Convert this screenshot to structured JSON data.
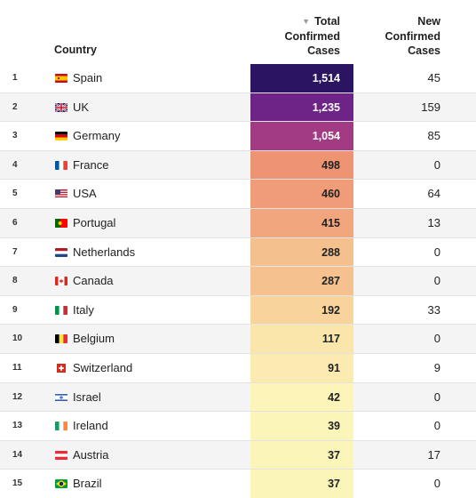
{
  "header": {
    "country_label": "Country",
    "total_line1": "Total",
    "total_line2": "Confirmed",
    "total_line3": "Cases",
    "sort_icon": "triangle-down-icon",
    "new_line1": "New",
    "new_line2": "Confirmed",
    "new_line3": "Cases"
  },
  "rows": [
    {
      "rank": "1",
      "flag": "spain-flag-icon",
      "country": "Spain",
      "total": "1,514",
      "new": "45",
      "bg": "#2b1563",
      "fg": "#ffffff"
    },
    {
      "rank": "2",
      "flag": "uk-flag-icon",
      "country": "UK",
      "total": "1,235",
      "new": "159",
      "bg": "#6e2387",
      "fg": "#ffffff"
    },
    {
      "rank": "3",
      "flag": "germany-flag-icon",
      "country": "Germany",
      "total": "1,054",
      "new": "85",
      "bg": "#a33b84",
      "fg": "#ffffff"
    },
    {
      "rank": "4",
      "flag": "france-flag-icon",
      "country": "France",
      "total": "498",
      "new": "0",
      "bg": "#ee9473",
      "fg": "#222222"
    },
    {
      "rank": "5",
      "flag": "usa-flag-icon",
      "country": "USA",
      "total": "460",
      "new": "64",
      "bg": "#f09c78",
      "fg": "#222222"
    },
    {
      "rank": "6",
      "flag": "portugal-flag-icon",
      "country": "Portugal",
      "total": "415",
      "new": "13",
      "bg": "#f2a67e",
      "fg": "#222222"
    },
    {
      "rank": "7",
      "flag": "netherlands-flag-icon",
      "country": "Netherlands",
      "total": "288",
      "new": "0",
      "bg": "#f4c08d",
      "fg": "#222222"
    },
    {
      "rank": "8",
      "flag": "canada-flag-icon",
      "country": "Canada",
      "total": "287",
      "new": "0",
      "bg": "#f5c18e",
      "fg": "#222222"
    },
    {
      "rank": "9",
      "flag": "italy-flag-icon",
      "country": "Italy",
      "total": "192",
      "new": "33",
      "bg": "#f8d49c",
      "fg": "#222222"
    },
    {
      "rank": "10",
      "flag": "belgium-flag-icon",
      "country": "Belgium",
      "total": "117",
      "new": "0",
      "bg": "#fae5aa",
      "fg": "#222222"
    },
    {
      "rank": "11",
      "flag": "switzerland-flag-icon",
      "country": "Switzerland",
      "total": "91",
      "new": "9",
      "bg": "#fbebb0",
      "fg": "#222222"
    },
    {
      "rank": "12",
      "flag": "israel-flag-icon",
      "country": "Israel",
      "total": "42",
      "new": "0",
      "bg": "#fcf4b8",
      "fg": "#222222"
    },
    {
      "rank": "13",
      "flag": "ireland-flag-icon",
      "country": "Ireland",
      "total": "39",
      "new": "0",
      "bg": "#fcf5b9",
      "fg": "#222222"
    },
    {
      "rank": "14",
      "flag": "austria-flag-icon",
      "country": "Austria",
      "total": "37",
      "new": "17",
      "bg": "#fcf5ba",
      "fg": "#222222"
    },
    {
      "rank": "15",
      "flag": "brazil-flag-icon",
      "country": "Brazil",
      "total": "37",
      "new": "0",
      "bg": "#fcf5ba",
      "fg": "#222222"
    }
  ]
}
